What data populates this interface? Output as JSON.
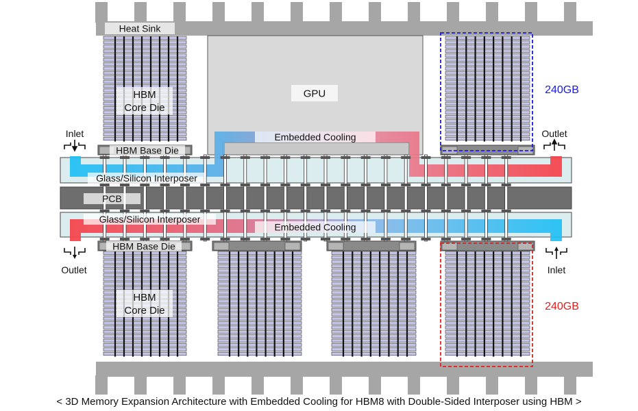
{
  "labels": {
    "heat_sink": "Heat Sink",
    "gpu": "GPU",
    "hbm_core_die_line1": "HBM",
    "hbm_core_die_line2": "Core Die",
    "hbm_base_die": "HBM Base Die",
    "interposer": "Glass/Silicon Interposer",
    "pcb": "PCB",
    "embedded_cooling": "Embedded Cooling",
    "inlet": "Inlet",
    "outlet": "Outlet",
    "capacity_top": "240GB",
    "capacity_bottom": "240GB"
  },
  "colors": {
    "capacity_top": "#1a1adb",
    "capacity_bottom": "#e01f1f",
    "coolant_cold": "#1ec0f5",
    "coolant_hot": "#f64048",
    "heat_sink": "#a6a6a6",
    "pcb": "#6e6e6e",
    "interposer": "#dcedf0",
    "hbm_layer": "#c5c5e6",
    "gpu": "#d9d9d9"
  },
  "caption": "< 3D Memory Expansion Architecture with Embedded Cooling for HBM8 with Double-Sided Interposer using HBM >"
}
